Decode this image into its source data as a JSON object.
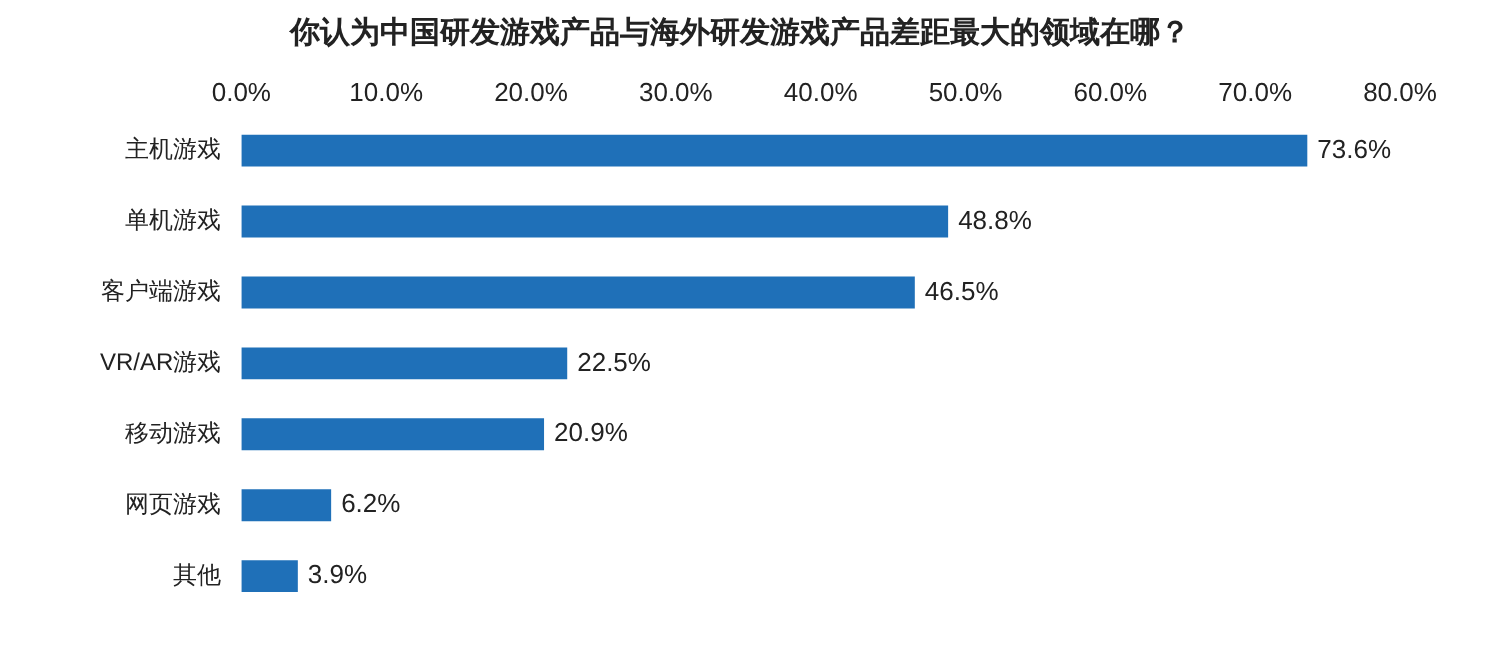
{
  "chart_data": {
    "type": "bar",
    "orientation": "horizontal",
    "title": "你认为中国研发游戏产品与海外研发游戏产品差距最大的领域在哪？",
    "categories": [
      "主机游戏",
      "单机游戏",
      "客户端游戏",
      "VR/AR游戏",
      "移动游戏",
      "网页游戏",
      "其他"
    ],
    "values": [
      73.6,
      48.8,
      46.5,
      22.5,
      20.9,
      6.2,
      3.9
    ],
    "value_labels": [
      "73.6%",
      "48.8%",
      "46.5%",
      "22.5%",
      "20.9%",
      "6.2%",
      "3.9%"
    ],
    "color": "#1f70b8",
    "xlim": [
      0,
      80
    ],
    "xticks": [
      {
        "value": 0,
        "label": "0.0%"
      },
      {
        "value": 10,
        "label": "10.0%"
      },
      {
        "value": 20,
        "label": "20.0%"
      },
      {
        "value": 30,
        "label": "30.0%"
      },
      {
        "value": 40,
        "label": "40.0%"
      },
      {
        "value": 50,
        "label": "50.0%"
      },
      {
        "value": 60,
        "label": "60.0%"
      },
      {
        "value": 70,
        "label": "70.0%"
      },
      {
        "value": 80,
        "label": "80.0%"
      }
    ],
    "grid": false,
    "legend": false
  }
}
